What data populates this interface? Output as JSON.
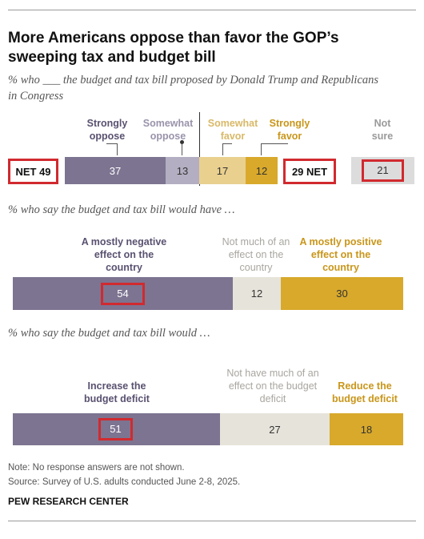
{
  "title": "More Americans oppose than favor the GOP’s sweeping tax and budget bill",
  "subtitle": "% who ___ the budget and tax bill proposed by Donald Trump and Republicans in Congress",
  "colors": {
    "strongly_oppose": "#7d7491",
    "somewhat_oppose": "#b4aec2",
    "somewhat_favor": "#e9d08f",
    "strongly_favor": "#d8a92b",
    "neutral": "#e6e3da",
    "not_sure": "#dcdcdc",
    "highlight": "#d12a2f"
  },
  "chart_data": [
    {
      "type": "bar",
      "orientation": "horizontal-stacked",
      "categories": [
        "Strongly oppose",
        "Somewhat oppose",
        "Somewhat favor",
        "Strongly favor",
        "Not sure"
      ],
      "values": [
        37,
        13,
        17,
        12,
        21
      ],
      "net": {
        "oppose_label": "NET 49",
        "favor_label": "29 NET"
      },
      "labels": {
        "strongly_oppose": "Strongly oppose",
        "somewhat_oppose": "Somewhat oppose",
        "somewhat_favor": "Somewhat favor",
        "strongly_favor": "Strongly favor",
        "not_sure": "Not sure"
      }
    },
    {
      "type": "bar",
      "orientation": "horizontal-stacked",
      "title": "% who say the budget and tax bill would have …",
      "categories": [
        "A mostly negative effect on the country",
        "Not much of an effect on the country",
        "A mostly positive effect on the country"
      ],
      "values": [
        54,
        12,
        30
      ]
    },
    {
      "type": "bar",
      "orientation": "horizontal-stacked",
      "title": "% who say the budget and tax bill would …",
      "categories": [
        "Increase the budget deficit",
        "Not have much of an effect on the budget deficit",
        "Reduce the budget deficit"
      ],
      "values": [
        51,
        27,
        18
      ]
    }
  ],
  "chart2": {
    "label_negative": "A mostly negative effect on the country",
    "label_none": "Not much of an effect on the country",
    "label_positive": "A mostly positive effect on the country"
  },
  "chart3": {
    "label_increase": "Increase the budget deficit",
    "label_none": "Not have much of an effect on the budget deficit",
    "label_reduce": "Reduce the budget deficit"
  },
  "footer": {
    "note": "Note: No response answers are not shown.",
    "source": "Source: Survey of U.S. adults conducted June 2-8, 2025.",
    "org": "PEW RESEARCH CENTER"
  }
}
